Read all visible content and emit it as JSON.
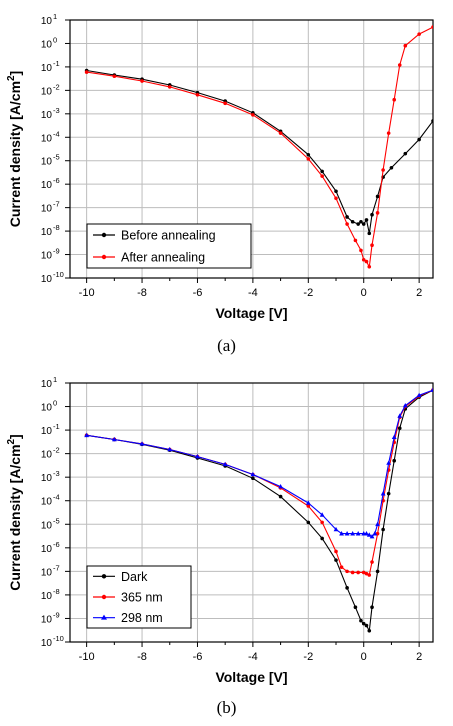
{
  "captions": [
    "(a)",
    "(b)"
  ],
  "chart_data": [
    {
      "type": "line",
      "panel": "(a)",
      "xlabel": "Voltage [V]",
      "ylabel": "Current density [A/cm²]",
      "ylabel_main": "Current density [A/cm",
      "ylabel_sup": "2",
      "ylabel_close": "]",
      "xlim": [
        -10.6,
        2.5
      ],
      "ylim_exp": [
        -10,
        1
      ],
      "yscale": "log",
      "grid": true,
      "legend": "bottom-left",
      "xticks": [
        -10,
        -8,
        -6,
        -4,
        -2,
        0,
        2
      ],
      "yticks_exp": [
        -10,
        -9,
        -8,
        -7,
        -6,
        -5,
        -4,
        -3,
        -2,
        -1,
        0,
        1
      ],
      "series": [
        {
          "name": "Before annealing",
          "color": "#000000",
          "marker": "circle",
          "x": [
            -10,
            -9,
            -8,
            -7,
            -6,
            -5,
            -4,
            -3,
            -2,
            -1.5,
            -1,
            -0.6,
            -0.4,
            -0.2,
            -0.1,
            0,
            0.1,
            0.2,
            0.3,
            0.5,
            0.7,
            1.0,
            1.5,
            2.0,
            2.5
          ],
          "y": [
            0.07,
            0.045,
            0.03,
            0.017,
            0.008,
            0.0035,
            0.0011,
            0.00018,
            1.8e-05,
            3.5e-06,
            5e-07,
            4e-08,
            2.5e-08,
            2e-08,
            2.5e-08,
            2e-08,
            3e-08,
            8e-09,
            5e-08,
            3e-07,
            2e-06,
            5e-06,
            2e-05,
            8e-05,
            0.0005
          ]
        },
        {
          "name": "After annealing",
          "color": "#ff0000",
          "marker": "circle",
          "x": [
            -10,
            -9,
            -8,
            -7,
            -6,
            -5,
            -4,
            -3,
            -2,
            -1.5,
            -1,
            -0.6,
            -0.3,
            -0.1,
            0,
            0.1,
            0.2,
            0.3,
            0.5,
            0.7,
            0.9,
            1.1,
            1.3,
            1.5,
            2.0,
            2.5
          ],
          "y": [
            0.06,
            0.04,
            0.025,
            0.014,
            0.0065,
            0.0028,
            0.0009,
            0.00015,
            1.2e-05,
            2.2e-06,
            2.5e-07,
            2e-08,
            4e-09,
            1.5e-09,
            6e-10,
            5e-10,
            3e-10,
            2.5e-09,
            6e-08,
            4e-06,
            0.00015,
            0.004,
            0.12,
            0.8,
            2.5,
            5
          ]
        }
      ]
    },
    {
      "type": "line",
      "panel": "(b)",
      "xlabel": "Voltage [V]",
      "ylabel": "Current density [A/cm²]",
      "ylabel_main": "Current density [A/cm",
      "ylabel_sup": "2",
      "ylabel_close": "]",
      "xlim": [
        -10.6,
        2.5
      ],
      "ylim_exp": [
        -10,
        1
      ],
      "yscale": "log",
      "grid": true,
      "legend": "bottom-left",
      "xticks": [
        -10,
        -8,
        -6,
        -4,
        -2,
        0,
        2
      ],
      "yticks_exp": [
        -10,
        -9,
        -8,
        -7,
        -6,
        -5,
        -4,
        -3,
        -2,
        -1,
        0,
        1
      ],
      "series": [
        {
          "name": "Dark",
          "color": "#000000",
          "marker": "circle",
          "x": [
            -10,
            -9,
            -8,
            -7,
            -6,
            -5,
            -4,
            -3,
            -2,
            -1.5,
            -1,
            -0.6,
            -0.3,
            -0.1,
            0,
            0.1,
            0.2,
            0.3,
            0.5,
            0.7,
            0.9,
            1.1,
            1.3,
            1.5,
            2.0,
            2.5
          ],
          "y": [
            0.06,
            0.04,
            0.025,
            0.014,
            0.0065,
            0.003,
            0.0009,
            0.00015,
            1.2e-05,
            2.5e-06,
            3e-07,
            2e-08,
            3e-09,
            8e-10,
            6e-10,
            5e-10,
            3e-10,
            3e-09,
            1e-07,
            6e-06,
            0.0002,
            0.005,
            0.12,
            0.8,
            2.5,
            5
          ]
        },
        {
          "name": "365 nm",
          "color": "#ff0000",
          "marker": "circle",
          "x": [
            -10,
            -9,
            -8,
            -7,
            -6,
            -5,
            -4,
            -3,
            -2,
            -1.5,
            -1,
            -0.8,
            -0.6,
            -0.4,
            -0.2,
            0,
            0.1,
            0.2,
            0.3,
            0.5,
            0.7,
            0.9,
            1.1,
            1.3,
            1.5,
            2.0,
            2.5
          ],
          "y": [
            0.06,
            0.04,
            0.026,
            0.015,
            0.0075,
            0.0035,
            0.0013,
            0.00035,
            6e-05,
            1.2e-05,
            7e-07,
            1.5e-07,
            1e-07,
            9e-08,
            9e-08,
            9e-08,
            8e-08,
            7e-08,
            2.5e-07,
            4e-06,
            0.0001,
            0.002,
            0.03,
            0.35,
            1.0,
            2.8,
            5
          ]
        },
        {
          "name": "298 nm",
          "color": "#0000ff",
          "marker": "triangle",
          "x": [
            -10,
            -9,
            -8,
            -7,
            -6,
            -5,
            -4,
            -3,
            -2,
            -1.5,
            -1,
            -0.8,
            -0.6,
            -0.4,
            -0.2,
            0,
            0.1,
            0.2,
            0.3,
            0.4,
            0.5,
            0.7,
            0.9,
            1.1,
            1.3,
            1.5,
            2.0,
            2.5
          ],
          "y": [
            0.06,
            0.04,
            0.026,
            0.015,
            0.0075,
            0.0035,
            0.0013,
            0.0004,
            8e-05,
            2.5e-05,
            6e-06,
            4e-06,
            4e-06,
            4e-06,
            4e-06,
            4e-06,
            4e-06,
            3.5e-06,
            3e-06,
            4e-06,
            1e-05,
            0.0002,
            0.004,
            0.05,
            0.4,
            1.1,
            3.0,
            5
          ]
        }
      ]
    }
  ]
}
